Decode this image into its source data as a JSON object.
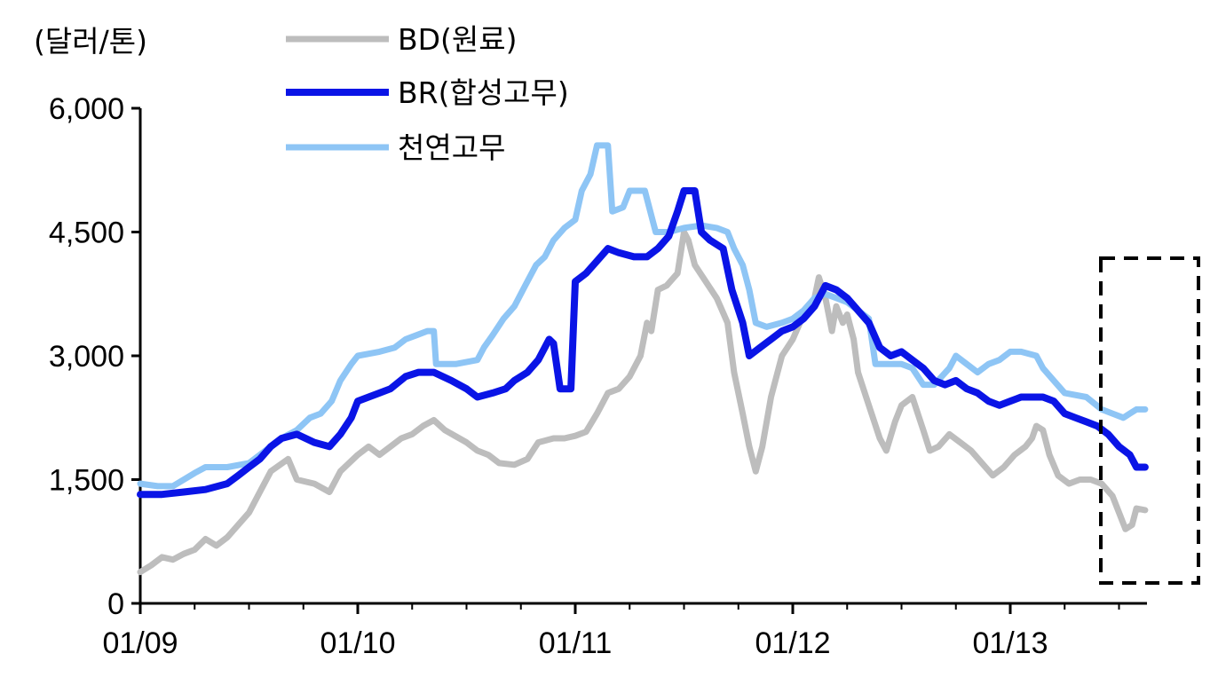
{
  "chart_data": {
    "type": "line",
    "unit_label": "(달러/톤)",
    "title": "",
    "xlabel": "",
    "ylabel": "(달러/톤)",
    "ylim": [
      0,
      6000
    ],
    "yticks": [
      "0",
      "1,500",
      "3,000",
      "4,500",
      "6,000"
    ],
    "ytick_values": [
      0,
      1500,
      3000,
      4500,
      6000
    ],
    "x_domain": [
      2009.0,
      2013.65
    ],
    "xticks": [
      "01/09",
      "01/10",
      "01/11",
      "01/12",
      "01/13"
    ],
    "xtick_values": [
      2009.0,
      2010.0,
      2011.0,
      2012.0,
      2013.0
    ],
    "grid": false,
    "legend_position": "top-center",
    "colors": {
      "bd": "#bdbdbd",
      "br": "#0a14e6",
      "nr": "#8ec5f5",
      "box": "#000000"
    },
    "series": [
      {
        "name": "BD(원료)",
        "color": "#bdbdbd",
        "points": [
          [
            2009.0,
            380
          ],
          [
            2009.05,
            460
          ],
          [
            2009.1,
            560
          ],
          [
            2009.15,
            530
          ],
          [
            2009.2,
            600
          ],
          [
            2009.25,
            650
          ],
          [
            2009.3,
            780
          ],
          [
            2009.35,
            700
          ],
          [
            2009.4,
            800
          ],
          [
            2009.45,
            950
          ],
          [
            2009.5,
            1100
          ],
          [
            2009.55,
            1350
          ],
          [
            2009.6,
            1600
          ],
          [
            2009.68,
            1750
          ],
          [
            2009.72,
            1500
          ],
          [
            2009.8,
            1450
          ],
          [
            2009.87,
            1350
          ],
          [
            2009.92,
            1600
          ],
          [
            2010.0,
            1800
          ],
          [
            2010.05,
            1900
          ],
          [
            2010.1,
            1800
          ],
          [
            2010.15,
            1900
          ],
          [
            2010.2,
            2000
          ],
          [
            2010.25,
            2050
          ],
          [
            2010.3,
            2150
          ],
          [
            2010.35,
            2220
          ],
          [
            2010.4,
            2100
          ],
          [
            2010.5,
            1950
          ],
          [
            2010.55,
            1850
          ],
          [
            2010.6,
            1800
          ],
          [
            2010.65,
            1700
          ],
          [
            2010.72,
            1680
          ],
          [
            2010.78,
            1750
          ],
          [
            2010.83,
            1950
          ],
          [
            2010.9,
            2000
          ],
          [
            2010.95,
            2000
          ],
          [
            2011.0,
            2030
          ],
          [
            2011.05,
            2080
          ],
          [
            2011.1,
            2300
          ],
          [
            2011.15,
            2550
          ],
          [
            2011.2,
            2600
          ],
          [
            2011.25,
            2750
          ],
          [
            2011.3,
            3000
          ],
          [
            2011.33,
            3400
          ],
          [
            2011.35,
            3300
          ],
          [
            2011.38,
            3800
          ],
          [
            2011.42,
            3850
          ],
          [
            2011.47,
            4000
          ],
          [
            2011.5,
            4500
          ],
          [
            2011.52,
            4400
          ],
          [
            2011.55,
            4100
          ],
          [
            2011.6,
            3900
          ],
          [
            2011.65,
            3700
          ],
          [
            2011.7,
            3400
          ],
          [
            2011.73,
            2800
          ],
          [
            2011.77,
            2300
          ],
          [
            2011.8,
            1900
          ],
          [
            2011.83,
            1600
          ],
          [
            2011.86,
            1900
          ],
          [
            2011.9,
            2500
          ],
          [
            2011.95,
            3000
          ],
          [
            2012.0,
            3200
          ],
          [
            2012.05,
            3500
          ],
          [
            2012.1,
            3700
          ],
          [
            2012.12,
            3950
          ],
          [
            2012.15,
            3700
          ],
          [
            2012.18,
            3300
          ],
          [
            2012.2,
            3600
          ],
          [
            2012.23,
            3400
          ],
          [
            2012.25,
            3500
          ],
          [
            2012.28,
            3200
          ],
          [
            2012.3,
            2800
          ],
          [
            2012.35,
            2400
          ],
          [
            2012.4,
            2000
          ],
          [
            2012.43,
            1850
          ],
          [
            2012.47,
            2200
          ],
          [
            2012.5,
            2400
          ],
          [
            2012.55,
            2500
          ],
          [
            2012.6,
            2100
          ],
          [
            2012.63,
            1850
          ],
          [
            2012.67,
            1900
          ],
          [
            2012.72,
            2050
          ],
          [
            2012.77,
            1950
          ],
          [
            2012.82,
            1850
          ],
          [
            2012.87,
            1700
          ],
          [
            2012.92,
            1550
          ],
          [
            2012.97,
            1650
          ],
          [
            2013.02,
            1800
          ],
          [
            2013.07,
            1900
          ],
          [
            2013.1,
            2000
          ],
          [
            2013.12,
            2150
          ],
          [
            2013.15,
            2100
          ],
          [
            2013.18,
            1800
          ],
          [
            2013.22,
            1550
          ],
          [
            2013.27,
            1450
          ],
          [
            2013.32,
            1500
          ],
          [
            2013.37,
            1500
          ],
          [
            2013.42,
            1450
          ],
          [
            2013.47,
            1300
          ],
          [
            2013.5,
            1100
          ],
          [
            2013.53,
            900
          ],
          [
            2013.56,
            950
          ],
          [
            2013.58,
            1150
          ],
          [
            2013.62,
            1130
          ]
        ]
      },
      {
        "name": "BR(합성고무)",
        "color": "#0a14e6",
        "points": [
          [
            2009.0,
            1320
          ],
          [
            2009.1,
            1320
          ],
          [
            2009.2,
            1350
          ],
          [
            2009.3,
            1380
          ],
          [
            2009.4,
            1450
          ],
          [
            2009.45,
            1550
          ],
          [
            2009.5,
            1650
          ],
          [
            2009.55,
            1750
          ],
          [
            2009.6,
            1900
          ],
          [
            2009.65,
            2000
          ],
          [
            2009.72,
            2050
          ],
          [
            2009.8,
            1950
          ],
          [
            2009.87,
            1900
          ],
          [
            2009.92,
            2050
          ],
          [
            2009.97,
            2250
          ],
          [
            2010.0,
            2450
          ],
          [
            2010.05,
            2500
          ],
          [
            2010.1,
            2550
          ],
          [
            2010.15,
            2600
          ],
          [
            2010.22,
            2750
          ],
          [
            2010.28,
            2800
          ],
          [
            2010.35,
            2800
          ],
          [
            2010.43,
            2700
          ],
          [
            2010.5,
            2600
          ],
          [
            2010.55,
            2500
          ],
          [
            2010.62,
            2550
          ],
          [
            2010.68,
            2600
          ],
          [
            2010.72,
            2700
          ],
          [
            2010.78,
            2800
          ],
          [
            2010.83,
            2950
          ],
          [
            2010.88,
            3200
          ],
          [
            2010.9,
            3150
          ],
          [
            2010.93,
            2600
          ],
          [
            2010.98,
            2600
          ],
          [
            2011.0,
            3900
          ],
          [
            2011.05,
            4000
          ],
          [
            2011.1,
            4150
          ],
          [
            2011.15,
            4300
          ],
          [
            2011.2,
            4250
          ],
          [
            2011.27,
            4200
          ],
          [
            2011.33,
            4200
          ],
          [
            2011.38,
            4300
          ],
          [
            2011.43,
            4450
          ],
          [
            2011.47,
            4750
          ],
          [
            2011.5,
            5000
          ],
          [
            2011.55,
            5000
          ],
          [
            2011.58,
            4500
          ],
          [
            2011.62,
            4400
          ],
          [
            2011.68,
            4300
          ],
          [
            2011.72,
            3800
          ],
          [
            2011.77,
            3400
          ],
          [
            2011.8,
            3000
          ],
          [
            2011.85,
            3100
          ],
          [
            2011.9,
            3200
          ],
          [
            2011.95,
            3300
          ],
          [
            2012.0,
            3350
          ],
          [
            2012.05,
            3450
          ],
          [
            2012.1,
            3600
          ],
          [
            2012.15,
            3850
          ],
          [
            2012.2,
            3800
          ],
          [
            2012.25,
            3700
          ],
          [
            2012.3,
            3550
          ],
          [
            2012.35,
            3400
          ],
          [
            2012.4,
            3100
          ],
          [
            2012.45,
            3000
          ],
          [
            2012.5,
            3050
          ],
          [
            2012.55,
            2950
          ],
          [
            2012.6,
            2850
          ],
          [
            2012.65,
            2700
          ],
          [
            2012.7,
            2650
          ],
          [
            2012.75,
            2700
          ],
          [
            2012.8,
            2600
          ],
          [
            2012.85,
            2550
          ],
          [
            2012.9,
            2450
          ],
          [
            2012.95,
            2400
          ],
          [
            2013.0,
            2450
          ],
          [
            2013.05,
            2500
          ],
          [
            2013.1,
            2500
          ],
          [
            2013.15,
            2500
          ],
          [
            2013.2,
            2450
          ],
          [
            2013.25,
            2300
          ],
          [
            2013.3,
            2250
          ],
          [
            2013.35,
            2200
          ],
          [
            2013.4,
            2150
          ],
          [
            2013.45,
            2050
          ],
          [
            2013.5,
            1900
          ],
          [
            2013.55,
            1800
          ],
          [
            2013.58,
            1650
          ],
          [
            2013.62,
            1650
          ]
        ]
      },
      {
        "name": "천연고무",
        "color": "#8ec5f5",
        "points": [
          [
            2009.0,
            1450
          ],
          [
            2009.08,
            1420
          ],
          [
            2009.15,
            1420
          ],
          [
            2009.25,
            1580
          ],
          [
            2009.3,
            1650
          ],
          [
            2009.4,
            1650
          ],
          [
            2009.5,
            1700
          ],
          [
            2009.55,
            1800
          ],
          [
            2009.6,
            1900
          ],
          [
            2009.65,
            2000
          ],
          [
            2009.72,
            2100
          ],
          [
            2009.78,
            2250
          ],
          [
            2009.83,
            2300
          ],
          [
            2009.88,
            2450
          ],
          [
            2009.92,
            2700
          ],
          [
            2009.97,
            2900
          ],
          [
            2010.0,
            3000
          ],
          [
            2010.1,
            3050
          ],
          [
            2010.17,
            3100
          ],
          [
            2010.22,
            3200
          ],
          [
            2010.27,
            3250
          ],
          [
            2010.32,
            3300
          ],
          [
            2010.35,
            3300
          ],
          [
            2010.36,
            2900
          ],
          [
            2010.45,
            2900
          ],
          [
            2010.55,
            2950
          ],
          [
            2010.58,
            3100
          ],
          [
            2010.62,
            3250
          ],
          [
            2010.67,
            3450
          ],
          [
            2010.72,
            3600
          ],
          [
            2010.77,
            3850
          ],
          [
            2010.82,
            4100
          ],
          [
            2010.86,
            4200
          ],
          [
            2010.9,
            4400
          ],
          [
            2010.95,
            4550
          ],
          [
            2011.0,
            4650
          ],
          [
            2011.03,
            5000
          ],
          [
            2011.07,
            5200
          ],
          [
            2011.1,
            5550
          ],
          [
            2011.15,
            5550
          ],
          [
            2011.17,
            4750
          ],
          [
            2011.22,
            4800
          ],
          [
            2011.25,
            5000
          ],
          [
            2011.32,
            5000
          ],
          [
            2011.35,
            4700
          ],
          [
            2011.37,
            4500
          ],
          [
            2011.43,
            4500
          ],
          [
            2011.5,
            4550
          ],
          [
            2011.58,
            4580
          ],
          [
            2011.65,
            4550
          ],
          [
            2011.7,
            4500
          ],
          [
            2011.73,
            4300
          ],
          [
            2011.77,
            4100
          ],
          [
            2011.8,
            3800
          ],
          [
            2011.83,
            3400
          ],
          [
            2011.88,
            3350
          ],
          [
            2011.95,
            3400
          ],
          [
            2012.0,
            3450
          ],
          [
            2012.05,
            3550
          ],
          [
            2012.1,
            3700
          ],
          [
            2012.15,
            3750
          ],
          [
            2012.2,
            3700
          ],
          [
            2012.25,
            3650
          ],
          [
            2012.3,
            3550
          ],
          [
            2012.35,
            3450
          ],
          [
            2012.38,
            2900
          ],
          [
            2012.45,
            2900
          ],
          [
            2012.5,
            2900
          ],
          [
            2012.55,
            2850
          ],
          [
            2012.6,
            2650
          ],
          [
            2012.65,
            2650
          ],
          [
            2012.72,
            2850
          ],
          [
            2012.75,
            3000
          ],
          [
            2012.8,
            2900
          ],
          [
            2012.85,
            2800
          ],
          [
            2012.9,
            2900
          ],
          [
            2012.95,
            2950
          ],
          [
            2013.0,
            3050
          ],
          [
            2013.05,
            3050
          ],
          [
            2013.12,
            3000
          ],
          [
            2013.15,
            2850
          ],
          [
            2013.2,
            2700
          ],
          [
            2013.25,
            2550
          ],
          [
            2013.35,
            2500
          ],
          [
            2013.42,
            2350
          ],
          [
            2013.47,
            2300
          ],
          [
            2013.52,
            2250
          ],
          [
            2013.55,
            2300
          ],
          [
            2013.58,
            2350
          ],
          [
            2013.62,
            2350
          ]
        ]
      }
    ]
  }
}
